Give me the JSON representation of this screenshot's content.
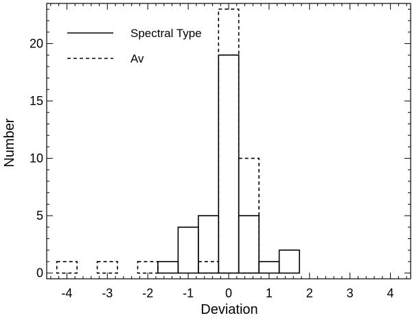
{
  "chart_data": {
    "type": "histogram",
    "xlabel": "Deviation",
    "ylabel": "Number",
    "xlim": [
      -4.5,
      4.5
    ],
    "ylim": [
      -0.5,
      23.5
    ],
    "bin_edges": [
      -4.25,
      -3.75,
      -3.25,
      -2.75,
      -2.25,
      -1.75,
      -1.25,
      -0.75,
      -0.25,
      0.25,
      0.75,
      1.25,
      1.75,
      2.25,
      2.75,
      3.25,
      3.75,
      4.25
    ],
    "x_ticks": [
      {
        "value": -4,
        "label": "-4"
      },
      {
        "value": -3,
        "label": "-3"
      },
      {
        "value": -2,
        "label": "-2"
      },
      {
        "value": -1,
        "label": "-1"
      },
      {
        "value": 0,
        "label": "0"
      },
      {
        "value": 1,
        "label": "1"
      },
      {
        "value": 2,
        "label": "2"
      },
      {
        "value": 3,
        "label": "3"
      },
      {
        "value": 4,
        "label": "4"
      }
    ],
    "y_ticks": [
      {
        "value": 0,
        "label": "0"
      },
      {
        "value": 5,
        "label": "5"
      },
      {
        "value": 10,
        "label": "10"
      },
      {
        "value": 15,
        "label": "15"
      },
      {
        "value": 20,
        "label": "20"
      }
    ],
    "series": [
      {
        "name": "Spectral Type",
        "line_style": "solid",
        "counts": [
          0,
          0,
          0,
          0,
          0,
          1,
          4,
          5,
          19,
          5,
          1,
          2,
          0,
          0,
          0,
          0,
          0
        ]
      },
      {
        "name": "Av",
        "line_style": "dashed",
        "counts": [
          1,
          0,
          1,
          0,
          1,
          0,
          0,
          1,
          23,
          10,
          0,
          0,
          0,
          0,
          0,
          0,
          0
        ]
      }
    ],
    "legend_position": "top-left",
    "grid": false,
    "color": "#000000"
  }
}
